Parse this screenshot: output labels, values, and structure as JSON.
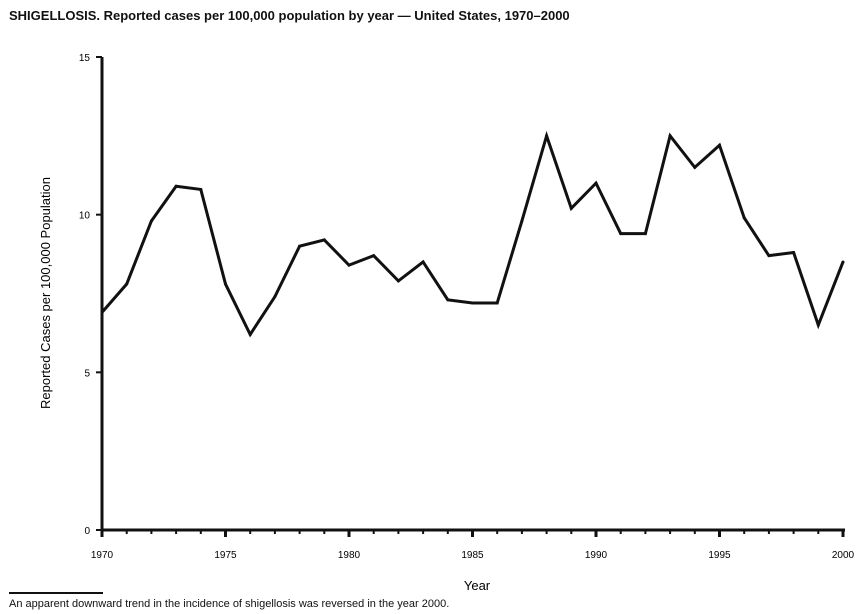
{
  "chart_data": {
    "type": "line",
    "title": "SHIGELLOSIS. Reported cases per 100,000 population by year — United States, 1970–2000",
    "xlabel": "Year",
    "ylabel": "Reported Cases per 100,000 Population",
    "xlim": [
      1970,
      2000
    ],
    "ylim": [
      0,
      15
    ],
    "xticks": [
      1970,
      1975,
      1980,
      1985,
      1990,
      1995,
      2000
    ],
    "yticks": [
      0,
      5,
      10,
      15
    ],
    "grid": false,
    "series": [
      {
        "color": "#111111",
        "x": [
          1970,
          1971,
          1972,
          1973,
          1974,
          1975,
          1976,
          1977,
          1978,
          1979,
          1980,
          1981,
          1982,
          1983,
          1984,
          1985,
          1986,
          1987,
          1988,
          1989,
          1990,
          1991,
          1992,
          1993,
          1994,
          1995,
          1996,
          1997,
          1998,
          1999,
          2000
        ],
        "values": [
          6.9,
          7.8,
          9.8,
          10.9,
          10.8,
          7.8,
          6.2,
          7.4,
          9.0,
          9.2,
          8.4,
          8.7,
          7.9,
          8.5,
          7.3,
          7.2,
          7.2,
          9.8,
          12.5,
          10.2,
          11.0,
          9.4,
          9.4,
          12.5,
          11.5,
          12.2,
          9.9,
          8.7,
          8.8,
          6.5,
          8.5
        ]
      }
    ],
    "footnote": "An apparent downward trend in the incidence of shigellosis was reversed in the year 2000."
  }
}
